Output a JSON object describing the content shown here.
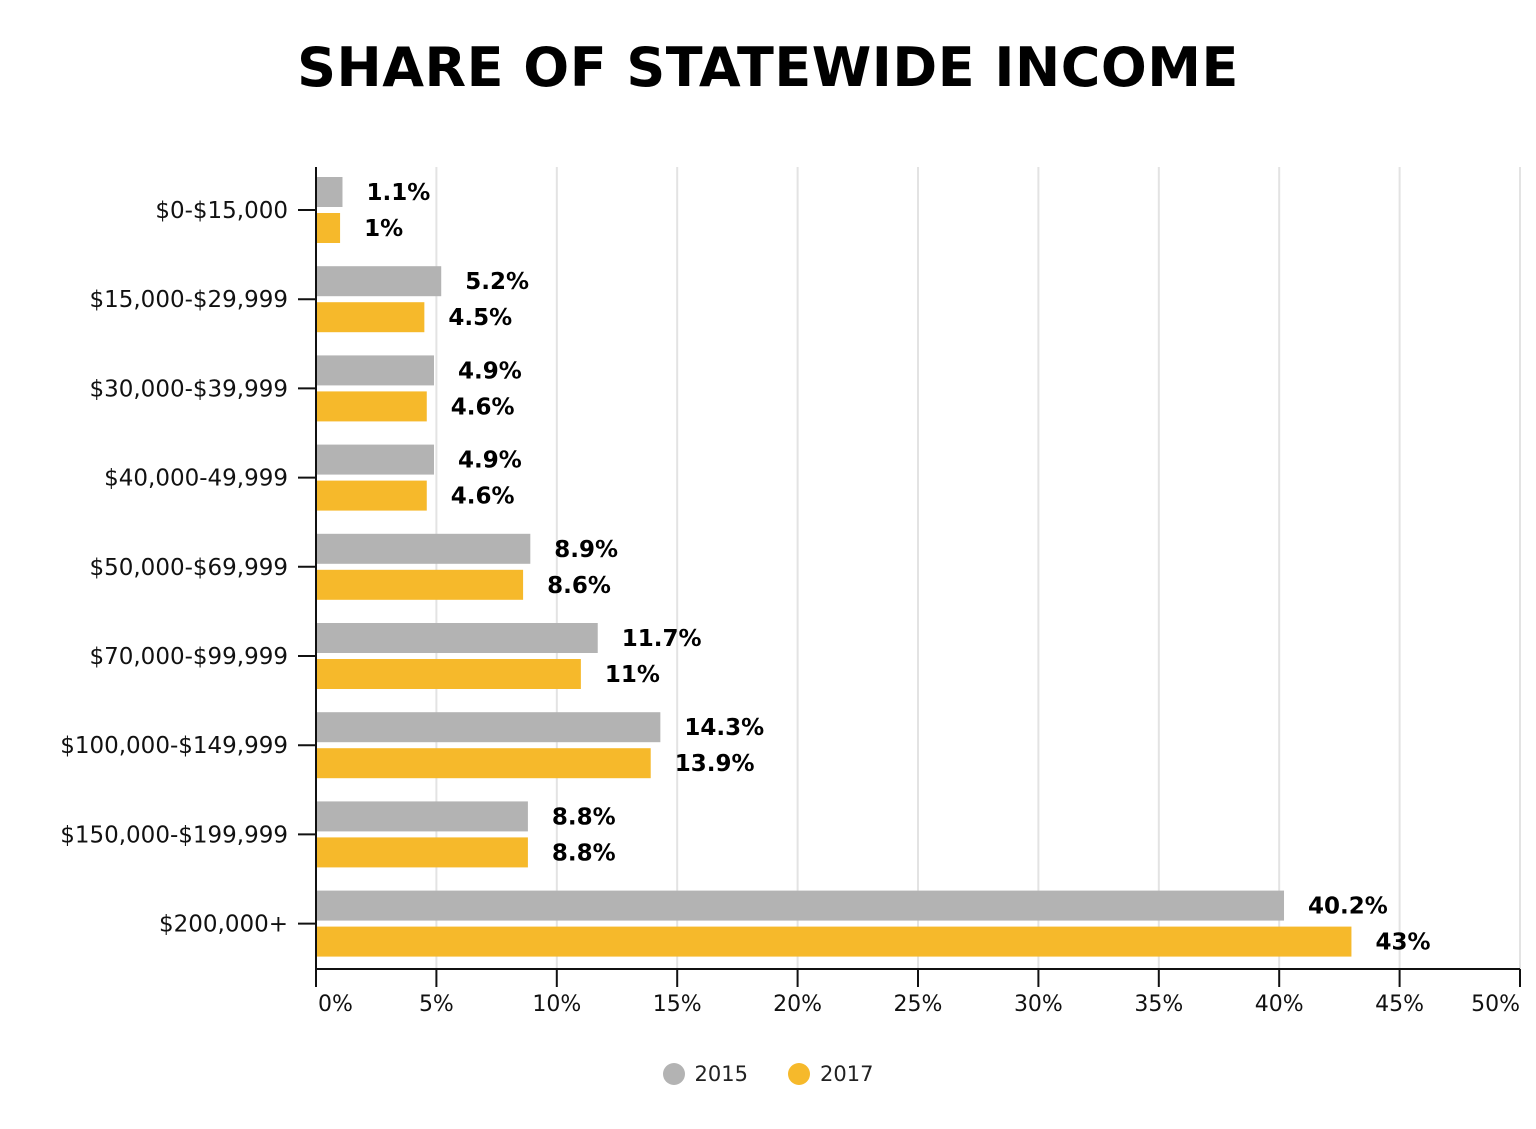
{
  "chart_data": {
    "type": "bar",
    "orientation": "horizontal",
    "title": "SHARE OF STATEWIDE INCOME",
    "categories": [
      "$0-$15,000",
      "$15,000-$29,999",
      "$30,000-$39,999",
      "$40,000-49,999",
      "$50,000-$69,999",
      "$70,000-$99,999",
      "$100,000-$149,999",
      "$150,000-$199,999",
      "$200,000+"
    ],
    "series": [
      {
        "name": "2015",
        "color": "#b3b3b3",
        "values": [
          1.1,
          5.2,
          4.9,
          4.9,
          8.9,
          11.7,
          14.3,
          8.8,
          40.2
        ],
        "labels": [
          "1.1%",
          "5.2%",
          "4.9%",
          "4.9%",
          "8.9%",
          "11.7%",
          "14.3%",
          "8.8%",
          "40.2%"
        ]
      },
      {
        "name": "2017",
        "color": "#f6b92b",
        "values": [
          1,
          4.5,
          4.6,
          4.6,
          8.6,
          11,
          13.9,
          8.8,
          43
        ],
        "labels": [
          "1%",
          "4.5%",
          "4.6%",
          "4.6%",
          "8.6%",
          "11%",
          "13.9%",
          "8.8%",
          "43%"
        ]
      }
    ],
    "xlim": [
      0,
      50
    ],
    "xticks": [
      0,
      5,
      10,
      15,
      20,
      25,
      30,
      35,
      40,
      45,
      50
    ],
    "xtick_labels": [
      "0%",
      "5%",
      "10%",
      "15%",
      "20%",
      "25%",
      "30%",
      "35%",
      "40%",
      "45%",
      "50%"
    ],
    "xlabel": "",
    "ylabel": "",
    "grid": "vertical",
    "legend_position": "bottom-center"
  }
}
